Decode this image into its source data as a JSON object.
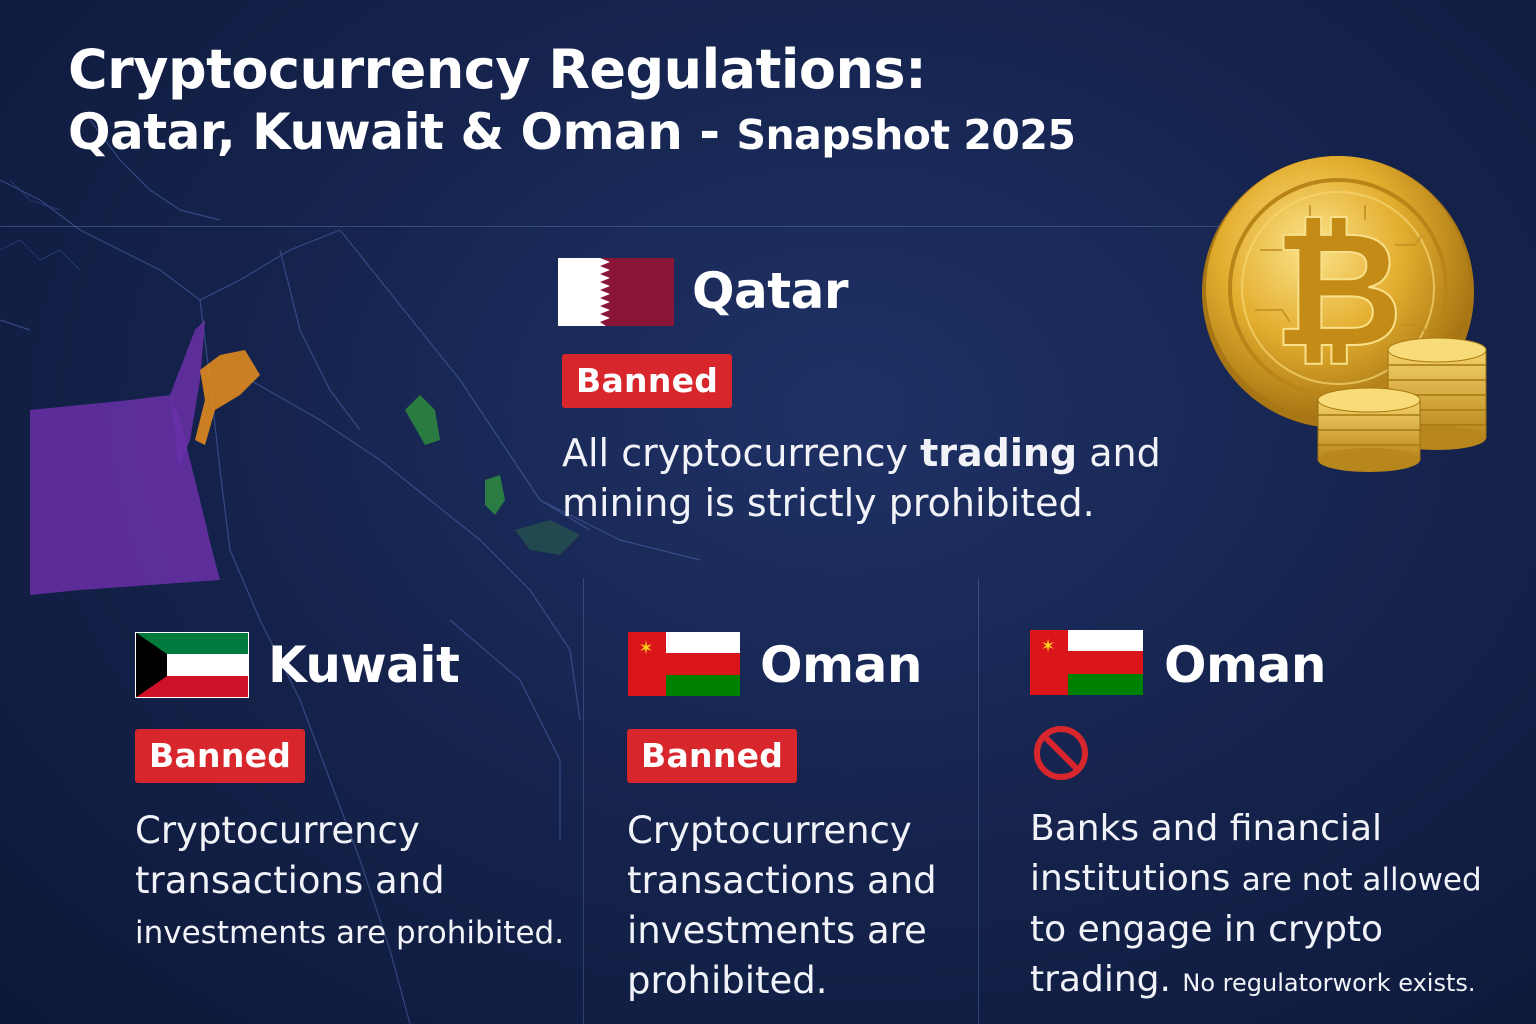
{
  "title": {
    "line1": "Cryptocurrency Regulations:",
    "line2_main": "Qatar, Kuwait & Oman - ",
    "line2_sub": "Snapshot 2025"
  },
  "sections": {
    "qatar": {
      "name": "Qatar",
      "status": "Banned",
      "desc_a": "All cryptocurrency ",
      "desc_bold": "trading",
      "desc_b": " and",
      "desc_c": "mining is strictly prohibited."
    },
    "kuwait": {
      "name": "Kuwait",
      "status": "Banned",
      "line1": "Cryptocurrency",
      "line2": "transactions and",
      "line3": "investments are prohibited."
    },
    "oman1": {
      "name": "Oman",
      "status": "Banned",
      "line1": "Cryptocurrency",
      "line2": "transactions and",
      "line3": "investments are",
      "line4": "prohibited."
    },
    "oman2": {
      "name": "Oman",
      "status_icon": "prohibited-icon",
      "line1": "Banks and financial",
      "line2a": "institutions ",
      "line2b": "are not allowed",
      "line3": "to engage in crypto",
      "line4a": "trading. ",
      "line4b": "No regulatorwork  exists."
    }
  },
  "colors": {
    "background": "#16244f",
    "badge_red": "#d7262c",
    "qatar_maroon": "#8a1538",
    "kuwait_green": "#007a3d",
    "oman_red": "#db161b",
    "gold": "#e6b43c"
  },
  "icons": {
    "coin": "bitcoin-coin-icon",
    "coin_stack": "gold-coin-stack-icon",
    "prohibited": "prohibited-icon"
  }
}
